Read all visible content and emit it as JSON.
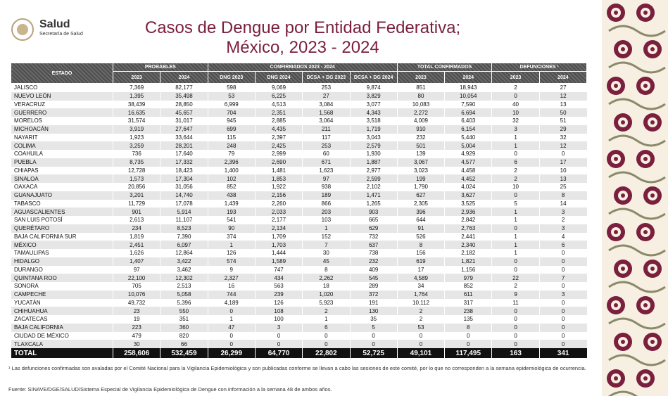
{
  "header": {
    "logo": {
      "name": "Salud",
      "subtitle": "Secretaría de Salud"
    },
    "title": [
      "Casos de Dengue por Entidad Federativa;",
      "México, 2023 - 2024"
    ]
  },
  "table": {
    "state_header": "ESTADO",
    "groups": [
      "PROBABLES",
      "CONFIRMADOS 2023 - 2024",
      "TOTAL CONFIRMADOS",
      "DEFUNCIONES ¹"
    ],
    "columns": [
      "2023",
      "2024",
      "DNG 2023",
      "DNG 2024",
      "DCSA + DG 2023",
      "DCSA + DG 2024",
      "2023",
      "2024",
      "2023",
      "2024"
    ],
    "rows": [
      [
        "JALISCO",
        "7,369",
        "82,177",
        "598",
        "9,069",
        "253",
        "9,874",
        "851",
        "18,943",
        "2",
        "27"
      ],
      [
        "NUEVO LEÓN",
        "1,395",
        "35,498",
        "53",
        "6,225",
        "27",
        "3,829",
        "80",
        "10,054",
        "0",
        "12"
      ],
      [
        "VERACRUZ",
        "38,439",
        "28,850",
        "6,999",
        "4,513",
        "3,084",
        "3,077",
        "10,083",
        "7,590",
        "40",
        "13"
      ],
      [
        "GUERRERO",
        "16,635",
        "45,657",
        "704",
        "2,351",
        "1,568",
        "4,343",
        "2,272",
        "6,694",
        "10",
        "50"
      ],
      [
        "MORELOS",
        "31,574",
        "31,017",
        "945",
        "2,885",
        "3,064",
        "3,518",
        "4,009",
        "6,403",
        "32",
        "51"
      ],
      [
        "MICHOACÁN",
        "3,919",
        "27,647",
        "699",
        "4,435",
        "211",
        "1,719",
        "910",
        "6,154",
        "3",
        "29"
      ],
      [
        "NAYARIT",
        "1,923",
        "33,644",
        "115",
        "2,397",
        "117",
        "3,043",
        "232",
        "5,440",
        "1",
        "32"
      ],
      [
        "COLIMA",
        "3,259",
        "28,201",
        "248",
        "2,425",
        "253",
        "2,579",
        "501",
        "5,004",
        "1",
        "12"
      ],
      [
        "COAHUILA",
        "736",
        "17,640",
        "79",
        "2,999",
        "60",
        "1,930",
        "139",
        "4,929",
        "0",
        "0"
      ],
      [
        "PUEBLA",
        "8,735",
        "17,332",
        "2,396",
        "2,690",
        "671",
        "1,887",
        "3,067",
        "4,577",
        "6",
        "17"
      ],
      [
        "CHIAPAS",
        "12,728",
        "18,423",
        "1,400",
        "1,481",
        "1,623",
        "2,977",
        "3,023",
        "4,458",
        "2",
        "10"
      ],
      [
        "SINALOA",
        "1,573",
        "17,304",
        "102",
        "1,853",
        "97",
        "2,599",
        "199",
        "4,452",
        "2",
        "13"
      ],
      [
        "OAXACA",
        "20,856",
        "31,056",
        "852",
        "1,922",
        "938",
        "2,102",
        "1,790",
        "4,024",
        "10",
        "25"
      ],
      [
        "GUANAJUATO",
        "3,201",
        "14,740",
        "438",
        "2,156",
        "189",
        "1,471",
        "627",
        "3,627",
        "0",
        "8"
      ],
      [
        "TABASCO",
        "11,729",
        "17,078",
        "1,439",
        "2,260",
        "866",
        "1,265",
        "2,305",
        "3,525",
        "5",
        "14"
      ],
      [
        "AGUASCALIENTES",
        "901",
        "5,914",
        "193",
        "2,033",
        "203",
        "903",
        "396",
        "2,936",
        "1",
        "3"
      ],
      [
        "SAN LUIS POTOSÍ",
        "2,613",
        "11,107",
        "541",
        "2,177",
        "103",
        "665",
        "644",
        "2,842",
        "1",
        "2"
      ],
      [
        "QUERÉTARO",
        "234",
        "8,523",
        "90",
        "2,134",
        "1",
        "629",
        "91",
        "2,763",
        "0",
        "3"
      ],
      [
        "BAJA CALIFORNIA SUR",
        "1,819",
        "7,390",
        "374",
        "1,709",
        "152",
        "732",
        "526",
        "2,441",
        "1",
        "4"
      ],
      [
        "MÉXICO",
        "2,451",
        "6,097",
        "1",
        "1,703",
        "7",
        "637",
        "8",
        "2,340",
        "1",
        "6"
      ],
      [
        "TAMAULIPAS",
        "1,626",
        "12,864",
        "126",
        "1,444",
        "30",
        "738",
        "156",
        "2,182",
        "1",
        "0"
      ],
      [
        "HIDALGO",
        "1,407",
        "3,422",
        "574",
        "1,589",
        "45",
        "232",
        "619",
        "1,821",
        "0",
        "0"
      ],
      [
        "DURANGO",
        "97",
        "3,462",
        "9",
        "747",
        "8",
        "409",
        "17",
        "1,156",
        "0",
        "0"
      ],
      [
        "QUINTANA ROO",
        "22,100",
        "12,302",
        "2,327",
        "434",
        "2,262",
        "545",
        "4,589",
        "979",
        "22",
        "7"
      ],
      [
        "SONORA",
        "705",
        "2,513",
        "16",
        "563",
        "18",
        "289",
        "34",
        "852",
        "2",
        "0"
      ],
      [
        "CAMPECHE",
        "10,076",
        "5,058",
        "744",
        "239",
        "1,020",
        "372",
        "1,764",
        "611",
        "9",
        "3"
      ],
      [
        "YUCATÁN",
        "49,732",
        "5,396",
        "4,189",
        "126",
        "5,923",
        "191",
        "10,112",
        "317",
        "11",
        "0"
      ],
      [
        "CHIHUAHUA",
        "23",
        "550",
        "0",
        "108",
        "2",
        "130",
        "2",
        "238",
        "0",
        "0"
      ],
      [
        "ZACATECAS",
        "19",
        "351",
        "1",
        "100",
        "1",
        "35",
        "2",
        "135",
        "0",
        "0"
      ],
      [
        "BAJA CALIFORNIA",
        "223",
        "360",
        "47",
        "3",
        "6",
        "5",
        "53",
        "8",
        "0",
        "0"
      ],
      [
        "CIUDAD DE MÉXICO",
        "479",
        "820",
        "0",
        "0",
        "0",
        "0",
        "0",
        "0",
        "0",
        "0"
      ],
      [
        "TLAXCALA",
        "30",
        "66",
        "0",
        "0",
        "0",
        "0",
        "0",
        "0",
        "0",
        "0"
      ]
    ],
    "total": [
      "TOTAL",
      "258,606",
      "532,459",
      "26,299",
      "64,770",
      "22,802",
      "52,725",
      "49,101",
      "117,495",
      "163",
      "341"
    ]
  },
  "footnote": "¹ Las defunciones confirmadas son avaladas por el Comité Nacional para la Vigilancia Epidemiológica y son publicadas conforme se llevan a cabo las sesiones de este comité, por lo que no corresponden a la semana epidemiológica de ocurrencia.",
  "source": "Fuente: SINAVE/DGE/SALUD/Sistema Especial de Vigilancia Epidemiológica de Dengue con información a la semana 48 de ambos años."
}
